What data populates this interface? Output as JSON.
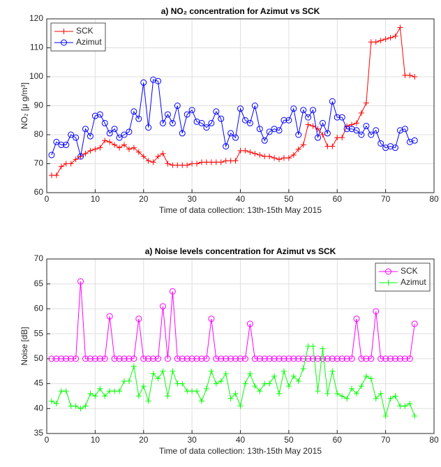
{
  "chart_data": [
    {
      "type": "line",
      "title": "a) NO₂ concentration for Azimut vs SCK",
      "xlabel": "Time of data collection: 13th-15th May 2015",
      "ylabel": "NO₂ [μ g/m³]",
      "x": [
        1,
        2,
        3,
        4,
        5,
        6,
        7,
        8,
        9,
        10,
        11,
        12,
        13,
        14,
        15,
        16,
        17,
        18,
        19,
        20,
        21,
        22,
        23,
        24,
        25,
        26,
        27,
        28,
        29,
        30,
        31,
        32,
        33,
        34,
        35,
        36,
        37,
        38,
        39,
        40,
        41,
        42,
        43,
        44,
        45,
        46,
        47,
        48,
        49,
        50,
        51,
        52,
        53,
        54,
        55,
        56,
        57,
        58,
        59,
        60,
        61,
        62,
        63,
        64,
        65,
        66,
        67,
        68,
        69,
        70,
        71,
        72,
        73,
        74,
        75,
        76
      ],
      "series": [
        {
          "name": "SCK",
          "color": "#ff0000",
          "marker": "plus",
          "values": [
            66,
            66,
            69,
            70,
            70,
            71.5,
            72.5,
            73.5,
            74.5,
            75,
            75.5,
            78,
            77.5,
            76.5,
            75.5,
            76.5,
            75,
            75.5,
            74,
            72.5,
            71,
            70.5,
            72.5,
            73.5,
            70,
            69.5,
            69.5,
            69.5,
            69.5,
            70,
            70,
            70.5,
            70.5,
            70.5,
            70.5,
            70.5,
            71,
            71,
            71,
            74.5,
            74.5,
            74,
            73.5,
            73,
            72.5,
            72.5,
            72,
            71.5,
            72,
            72,
            73,
            75,
            76.5,
            83.5,
            83,
            82,
            80,
            76,
            76,
            79,
            79,
            83,
            83.5,
            84,
            87.5,
            91,
            112,
            112,
            112.5,
            113,
            113.5,
            114,
            117,
            100.5,
            100.5,
            100
          ]
        },
        {
          "name": "Azimut",
          "color": "#0000ff",
          "marker": "circle",
          "values": [
            73,
            77.5,
            76.5,
            76.5,
            80,
            79,
            72.5,
            82,
            79.5,
            86.5,
            87,
            84,
            80.5,
            82,
            79,
            80,
            81,
            88,
            85.5,
            98,
            82.5,
            99,
            98.5,
            84,
            87,
            84,
            90,
            80.5,
            87,
            88.5,
            84.5,
            84,
            82.5,
            84,
            88,
            85.5,
            76,
            80.5,
            79,
            89,
            85,
            84,
            90,
            82,
            78,
            81,
            82,
            81.5,
            85,
            85,
            89,
            80,
            88.5,
            86,
            88.5,
            79,
            84,
            80.5,
            91.5,
            86,
            86,
            82,
            82,
            81.5,
            80,
            83,
            80,
            81.5,
            77,
            75.5,
            76,
            75.5,
            81.5,
            82,
            77.5,
            78
          ]
        }
      ],
      "xlim": [
        0,
        80
      ],
      "xticks": [
        0,
        10,
        20,
        30,
        40,
        50,
        60,
        70,
        80
      ],
      "ylim": [
        60,
        120
      ],
      "yticks": [
        60,
        70,
        80,
        90,
        100,
        110,
        120
      ],
      "grid": true,
      "legend": "top-left"
    },
    {
      "type": "line",
      "title": "a) Noise levels concentration for Azimut vs SCK",
      "xlabel": "Time of data collection: 13th-15th May 2015",
      "ylabel": "Noise [dB]",
      "x": [
        1,
        2,
        3,
        4,
        5,
        6,
        7,
        8,
        9,
        10,
        11,
        12,
        13,
        14,
        15,
        16,
        17,
        18,
        19,
        20,
        21,
        22,
        23,
        24,
        25,
        26,
        27,
        28,
        29,
        30,
        31,
        32,
        33,
        34,
        35,
        36,
        37,
        38,
        39,
        40,
        41,
        42,
        43,
        44,
        45,
        46,
        47,
        48,
        49,
        50,
        51,
        52,
        53,
        54,
        55,
        56,
        57,
        58,
        59,
        60,
        61,
        62,
        63,
        64,
        65,
        66,
        67,
        68,
        69,
        70,
        71,
        72,
        73,
        74,
        75,
        76
      ],
      "series": [
        {
          "name": "SCK",
          "color": "#ff00ff",
          "marker": "circle",
          "values": [
            50,
            50,
            50,
            50,
            50,
            50,
            65.5,
            50,
            50,
            50,
            50,
            50,
            58.5,
            50,
            50,
            50,
            50,
            50,
            58,
            50,
            50,
            50,
            50,
            60.5,
            50,
            63.5,
            50,
            50,
            50,
            50,
            50,
            50,
            50,
            58,
            50,
            50,
            50,
            50,
            50,
            50,
            50,
            57,
            50,
            50,
            50,
            50,
            50,
            50,
            50,
            50,
            50,
            50,
            50,
            50,
            50,
            50,
            50,
            50,
            50,
            50,
            50,
            50,
            50,
            58,
            50,
            50,
            50,
            59.5,
            50,
            50,
            50,
            50,
            50,
            50,
            50,
            57
          ]
        },
        {
          "name": "Azimut",
          "color": "#00ff00",
          "marker": "plus",
          "values": [
            41.5,
            41,
            43.5,
            43.5,
            40.5,
            40.5,
            40,
            40.5,
            43,
            42.5,
            44,
            42.5,
            43.5,
            43.5,
            43.5,
            45.5,
            45.5,
            48.5,
            42.5,
            44.5,
            41.5,
            47,
            46,
            47.5,
            42.5,
            47.5,
            45,
            45,
            43.5,
            43.5,
            43.5,
            41.5,
            44,
            47.5,
            45,
            45.5,
            47,
            42,
            43,
            40.5,
            45,
            47,
            44.5,
            43.5,
            45,
            45,
            46.5,
            43,
            47.5,
            44.5,
            46.5,
            45.5,
            48,
            52.5,
            52.5,
            43.5,
            52,
            43,
            47.5,
            43,
            42.5,
            42,
            44,
            43,
            44.5,
            46.5,
            46,
            42,
            43,
            38.5,
            42,
            42.5,
            40.5,
            40.5,
            41,
            38.5
          ]
        }
      ],
      "xlim": [
        0,
        80
      ],
      "xticks": [
        0,
        10,
        20,
        30,
        40,
        50,
        60,
        70,
        80
      ],
      "ylim": [
        35,
        70
      ],
      "yticks": [
        35,
        40,
        45,
        50,
        55,
        60,
        65,
        70
      ],
      "grid": true,
      "legend": "top-right"
    }
  ]
}
